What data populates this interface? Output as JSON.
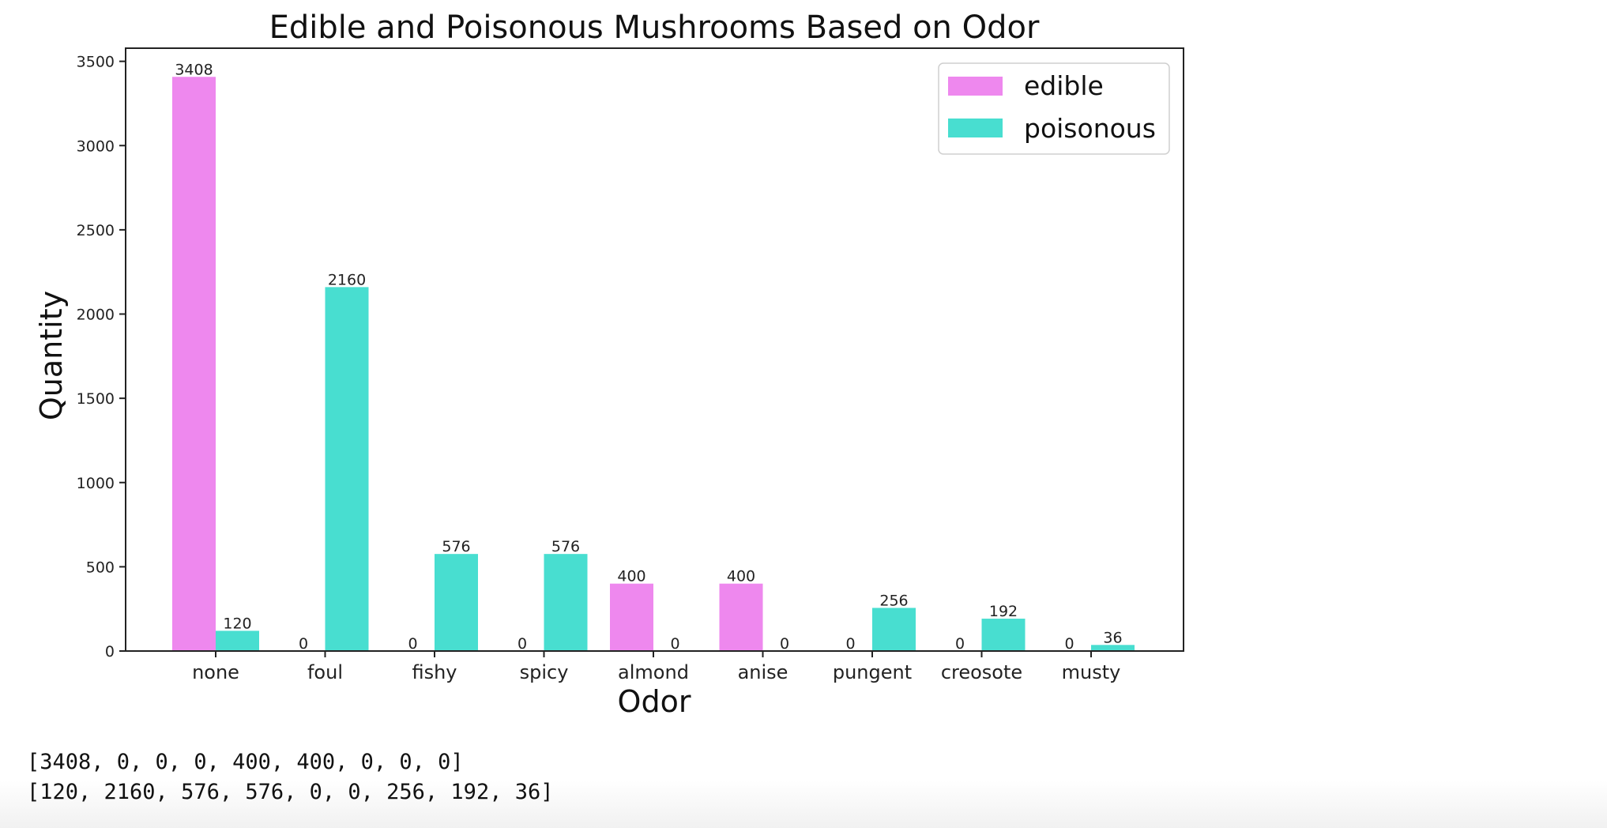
{
  "chart_data": {
    "type": "bar",
    "title": "Edible and Poisonous Mushrooms Based on Odor",
    "xlabel": "Odor",
    "ylabel": "Quantity",
    "categories": [
      "none",
      "foul",
      "fishy",
      "spicy",
      "almond",
      "anise",
      "pungent",
      "creosote",
      "musty"
    ],
    "series": [
      {
        "name": "edible",
        "color": "#ee88ee",
        "values": [
          3408,
          0,
          0,
          0,
          400,
          400,
          0,
          0,
          0
        ]
      },
      {
        "name": "poisonous",
        "color": "#48ded0",
        "values": [
          120,
          2160,
          576,
          576,
          0,
          0,
          256,
          192,
          36
        ]
      }
    ],
    "ylim": [
      0,
      3578
    ],
    "yticks": [
      0,
      500,
      1000,
      1500,
      2000,
      2500,
      3000,
      3500
    ],
    "grid": false,
    "legend_position": "top-right"
  },
  "output": {
    "lines": [
      "[3408, 0, 0, 0, 400, 400, 0, 0, 0]",
      "[120, 2160, 576, 576, 0, 0, 256, 192, 36]"
    ]
  }
}
